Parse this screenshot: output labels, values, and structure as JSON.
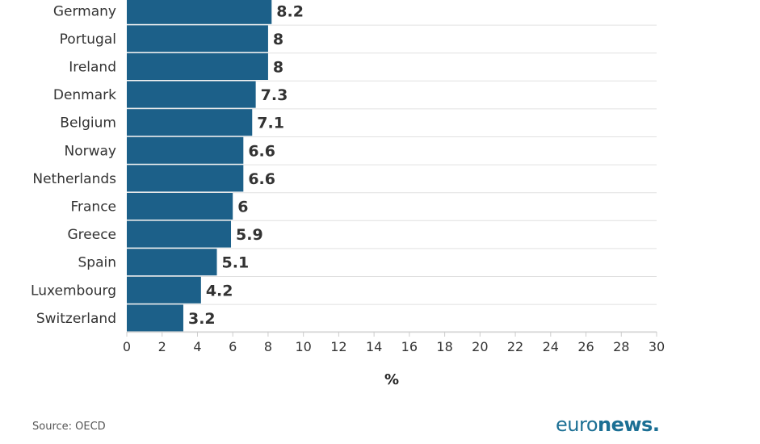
{
  "chart_data": {
    "type": "bar",
    "orientation": "horizontal",
    "categories": [
      "Germany",
      "Portugal",
      "Ireland",
      "Denmark",
      "Belgium",
      "Norway",
      "Netherlands",
      "France",
      "Greece",
      "Spain",
      "Luxembourg",
      "Switzerland"
    ],
    "values": [
      8.2,
      8,
      8,
      7.3,
      7.1,
      6.6,
      6.6,
      6,
      5.9,
      5.1,
      4.2,
      3.2
    ],
    "value_labels": [
      "8.2",
      "8",
      "8",
      "7.3",
      "7.1",
      "6.6",
      "6.6",
      "6",
      "5.9",
      "5.1",
      "4.2",
      "3.2"
    ],
    "xlabel": "%",
    "xlim": [
      0,
      30
    ],
    "xticks": [
      0,
      2,
      4,
      6,
      8,
      10,
      12,
      14,
      16,
      18,
      20,
      22,
      24,
      26,
      28,
      30
    ],
    "grid": true,
    "bar_color": "#1c6089"
  },
  "footer": {
    "source": "Source: OECD",
    "brand_regular": "euro",
    "brand_bold": "news."
  },
  "colors": {
    "brand": "#1b6f94",
    "grid": "#e0e0e0"
  }
}
